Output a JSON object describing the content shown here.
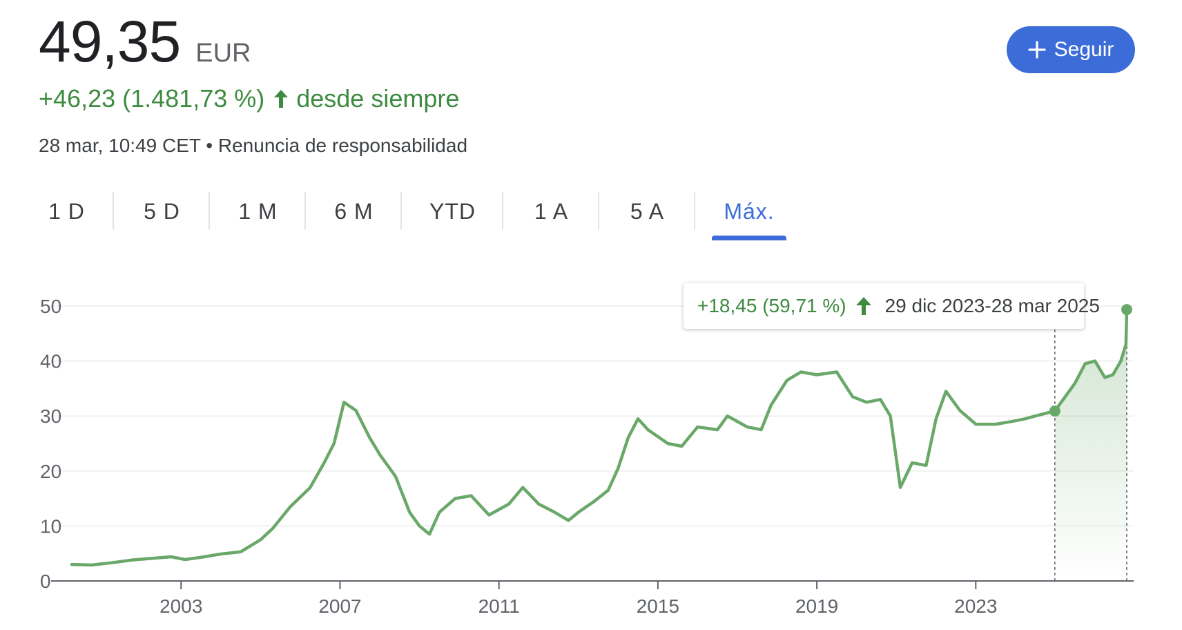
{
  "quote": {
    "price": "49,35",
    "currency": "EUR",
    "change": "+46,23 (1.481,73 %)",
    "change_period": "desde siempre",
    "timestamp": "28 mar, 10:49 CET",
    "separator": "•",
    "disclaimer": "Renuncia de responsabilidad"
  },
  "follow_button": {
    "label": "Seguir"
  },
  "tabs": [
    {
      "label": "1 D",
      "active": false
    },
    {
      "label": "5 D",
      "active": false
    },
    {
      "label": "1 M",
      "active": false
    },
    {
      "label": "6 M",
      "active": false
    },
    {
      "label": "YTD",
      "active": false
    },
    {
      "label": "1 A",
      "active": false
    },
    {
      "label": "5 A",
      "active": false
    },
    {
      "label": "Máx.",
      "active": true
    }
  ],
  "tooltip": {
    "change": "+18,45 (59,71 %)",
    "range": "29 dic 2023-28 mar 2025"
  },
  "colors": {
    "line": "#6aa86a",
    "positive": "#3d8b40",
    "accent": "#3c6cd8"
  },
  "chart_data": {
    "type": "line",
    "xlabel": "",
    "ylabel": "",
    "ylim": [
      0,
      50
    ],
    "y_ticks": [
      0,
      10,
      20,
      30,
      40,
      50
    ],
    "x_ticks": [
      2003,
      2007,
      2011,
      2015,
      2019,
      2023
    ],
    "grid": true,
    "series": [
      {
        "values": [
          [
            2000.25,
            3.0
          ],
          [
            2000.75,
            2.9
          ],
          [
            2001.25,
            3.3
          ],
          [
            2001.75,
            3.8
          ],
          [
            2002.25,
            4.1
          ],
          [
            2002.75,
            4.4
          ],
          [
            2003.1,
            3.9
          ],
          [
            2003.5,
            4.3
          ],
          [
            2004.0,
            4.9
          ],
          [
            2004.5,
            5.3
          ],
          [
            2005.0,
            7.5
          ],
          [
            2005.3,
            9.5
          ],
          [
            2005.75,
            13.5
          ],
          [
            2006.25,
            17.0
          ],
          [
            2006.6,
            21.5
          ],
          [
            2006.85,
            25.0
          ],
          [
            2007.1,
            32.5
          ],
          [
            2007.4,
            31.0
          ],
          [
            2007.75,
            26.0
          ],
          [
            2008.0,
            23.0
          ],
          [
            2008.4,
            19.0
          ],
          [
            2008.75,
            12.5
          ],
          [
            2009.0,
            10.0
          ],
          [
            2009.25,
            8.5
          ],
          [
            2009.5,
            12.5
          ],
          [
            2009.9,
            15.0
          ],
          [
            2010.3,
            15.5
          ],
          [
            2010.75,
            12.0
          ],
          [
            2011.25,
            14.0
          ],
          [
            2011.6,
            17.0
          ],
          [
            2012.0,
            14.0
          ],
          [
            2012.4,
            12.5
          ],
          [
            2012.75,
            11.0
          ],
          [
            2013.0,
            12.5
          ],
          [
            2013.4,
            14.5
          ],
          [
            2013.75,
            16.5
          ],
          [
            2014.0,
            20.5
          ],
          [
            2014.25,
            26.0
          ],
          [
            2014.5,
            29.5
          ],
          [
            2014.75,
            27.5
          ],
          [
            2015.25,
            25.0
          ],
          [
            2015.6,
            24.5
          ],
          [
            2016.0,
            28.0
          ],
          [
            2016.5,
            27.5
          ],
          [
            2016.75,
            30.0
          ],
          [
            2017.25,
            28.0
          ],
          [
            2017.6,
            27.5
          ],
          [
            2017.85,
            32.0
          ],
          [
            2018.25,
            36.5
          ],
          [
            2018.6,
            38.0
          ],
          [
            2019.0,
            37.5
          ],
          [
            2019.5,
            38.0
          ],
          [
            2019.9,
            33.5
          ],
          [
            2020.25,
            32.5
          ],
          [
            2020.6,
            33.0
          ],
          [
            2020.85,
            30.0
          ],
          [
            2021.1,
            17.0
          ],
          [
            2021.4,
            21.5
          ],
          [
            2021.75,
            21.0
          ],
          [
            2022.0,
            29.5
          ],
          [
            2022.25,
            34.5
          ],
          [
            2022.6,
            31.0
          ],
          [
            2023.0,
            28.5
          ],
          [
            2023.5,
            28.5
          ],
          [
            2023.9,
            29.0
          ],
          [
            2024.25,
            29.5
          ],
          [
            2024.5,
            30.0
          ],
          [
            2024.99,
            30.9
          ]
        ]
      },
      {
        "values": [
          [
            2024.99,
            30.9
          ],
          [
            2025.25,
            33.5
          ],
          [
            2025.5,
            36.0
          ],
          [
            2025.75,
            39.5
          ],
          [
            2026.0,
            40.0
          ],
          [
            2026.25,
            37.0
          ],
          [
            2026.45,
            37.5
          ],
          [
            2026.65,
            40.0
          ],
          [
            2026.78,
            43.0
          ],
          [
            2026.8,
            49.35
          ]
        ]
      }
    ],
    "range_markers": [
      2024.99,
      2026.8
    ]
  }
}
